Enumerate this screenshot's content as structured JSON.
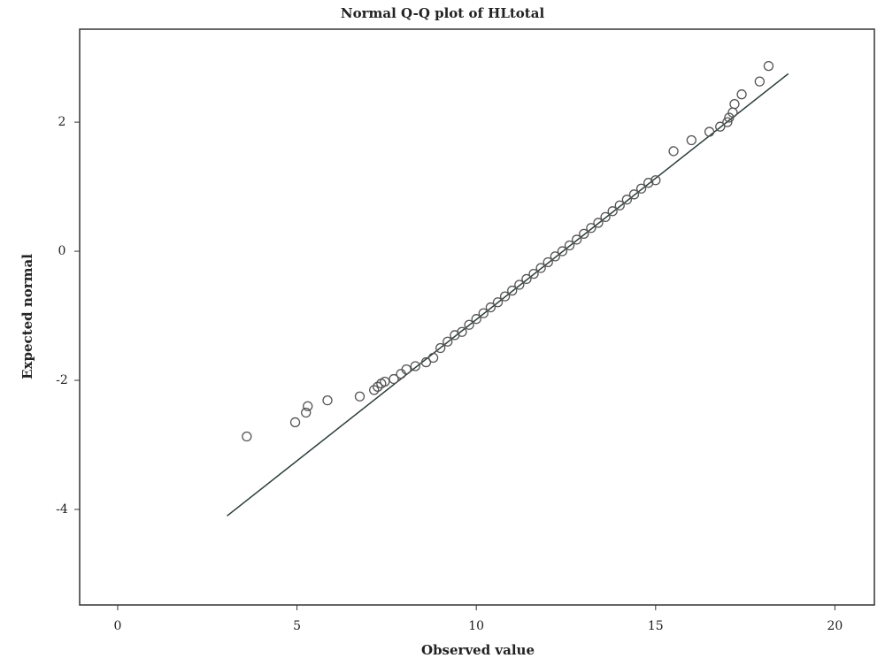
{
  "chart_data": {
    "type": "scatter",
    "title": "Normal Q-Q plot of HLtotal",
    "x_label": "Observed value",
    "y_label": "Expected normal",
    "x": [
      3.6,
      4.95,
      5.25,
      5.3,
      5.85,
      6.75,
      7.15,
      7.25,
      7.35,
      7.45,
      7.7,
      7.9,
      8.05,
      8.3,
      8.6,
      8.8,
      9.0,
      9.2,
      9.4,
      9.6,
      9.8,
      10.0,
      10.2,
      10.4,
      10.6,
      10.8,
      11.0,
      11.2,
      11.4,
      11.6,
      11.8,
      12.0,
      12.2,
      12.4,
      12.6,
      12.8,
      13.0,
      13.2,
      13.4,
      13.6,
      13.8,
      14.0,
      14.2,
      14.4,
      14.6,
      14.8,
      15.0,
      15.5,
      16.0,
      16.5,
      16.8,
      17.0,
      17.05,
      17.15,
      17.2,
      17.4,
      17.9,
      18.15
    ],
    "y": [
      -2.87,
      -2.65,
      -2.5,
      -2.4,
      -2.31,
      -2.25,
      -2.15,
      -2.1,
      -2.05,
      -2.02,
      -1.98,
      -1.9,
      -1.83,
      -1.78,
      -1.72,
      -1.65,
      -1.5,
      -1.4,
      -1.3,
      -1.25,
      -1.14,
      -1.05,
      -0.96,
      -0.87,
      -0.79,
      -0.7,
      -0.61,
      -0.52,
      -0.43,
      -0.35,
      -0.26,
      -0.17,
      -0.08,
      0.0,
      0.09,
      0.18,
      0.27,
      0.36,
      0.44,
      0.53,
      0.62,
      0.71,
      0.8,
      0.88,
      0.97,
      1.06,
      1.1,
      1.55,
      1.72,
      1.85,
      1.93,
      2.0,
      2.07,
      2.15,
      2.28,
      2.43,
      2.63,
      2.87
    ],
    "color": "#555555",
    "reference_line": {
      "x": [
        3.05,
        18.7
      ],
      "y": [
        -4.1,
        2.75
      ],
      "color": "#2a3a3a"
    },
    "xlim": [
      -1.06,
      21.1
    ],
    "ylim": [
      -5.48,
      3.44
    ],
    "xticks": [
      0,
      5,
      10,
      15,
      20
    ],
    "yticks": [
      2,
      0,
      -2,
      -4
    ]
  }
}
